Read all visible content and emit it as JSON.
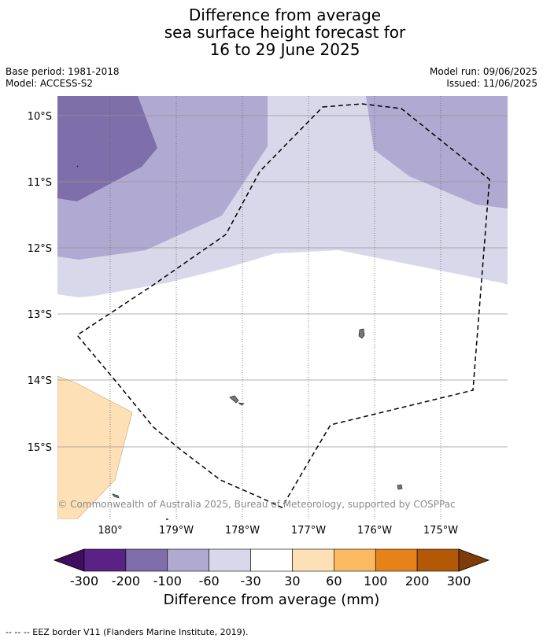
{
  "title_lines": [
    "Difference from average",
    "sea surface height forecast for",
    "16 to 29 June 2025"
  ],
  "base_period": "Base period: 1981-2018",
  "model": "Model: ACCESS-S2",
  "model_run": "Model run: 09/06/2025",
  "issued": "Issued: 11/06/2025",
  "lat_labels": [
    "10°S",
    "11°S",
    "12°S",
    "13°S",
    "14°S",
    "15°S"
  ],
  "lon_labels": [
    "180°",
    "179°W",
    "178°W",
    "177°W",
    "176°W",
    "175°W"
  ],
  "credit": "© Commonwealth of Australia 2025, Bureau of Meteorology, supported by COSPPac",
  "colorbar": {
    "ticks": [
      "-300",
      "-200",
      "-100",
      "-60",
      "-30",
      "30",
      "60",
      "100",
      "200",
      "300"
    ],
    "colors": [
      "#3f0e5e",
      "#5a2287",
      "#7e6ea9",
      "#b0a9d1",
      "#d8d8ea",
      "#ffffff",
      "#fde0b6",
      "#fbb961",
      "#e5831a",
      "#b35806",
      "#7f3b08"
    ],
    "title": "Difference from average (mm)"
  },
  "footnote": "-- -- -- EEZ border V11 (Flanders Marine Institute, 2019).",
  "colors": {
    "band_-200_-100": "#7e6ea9",
    "band_-100_-60": "#b0a9d1",
    "band_-60_-30": "#d8d8ea",
    "band_-30_30": "#ffffff",
    "band_30_60": "#fde0b6"
  }
}
